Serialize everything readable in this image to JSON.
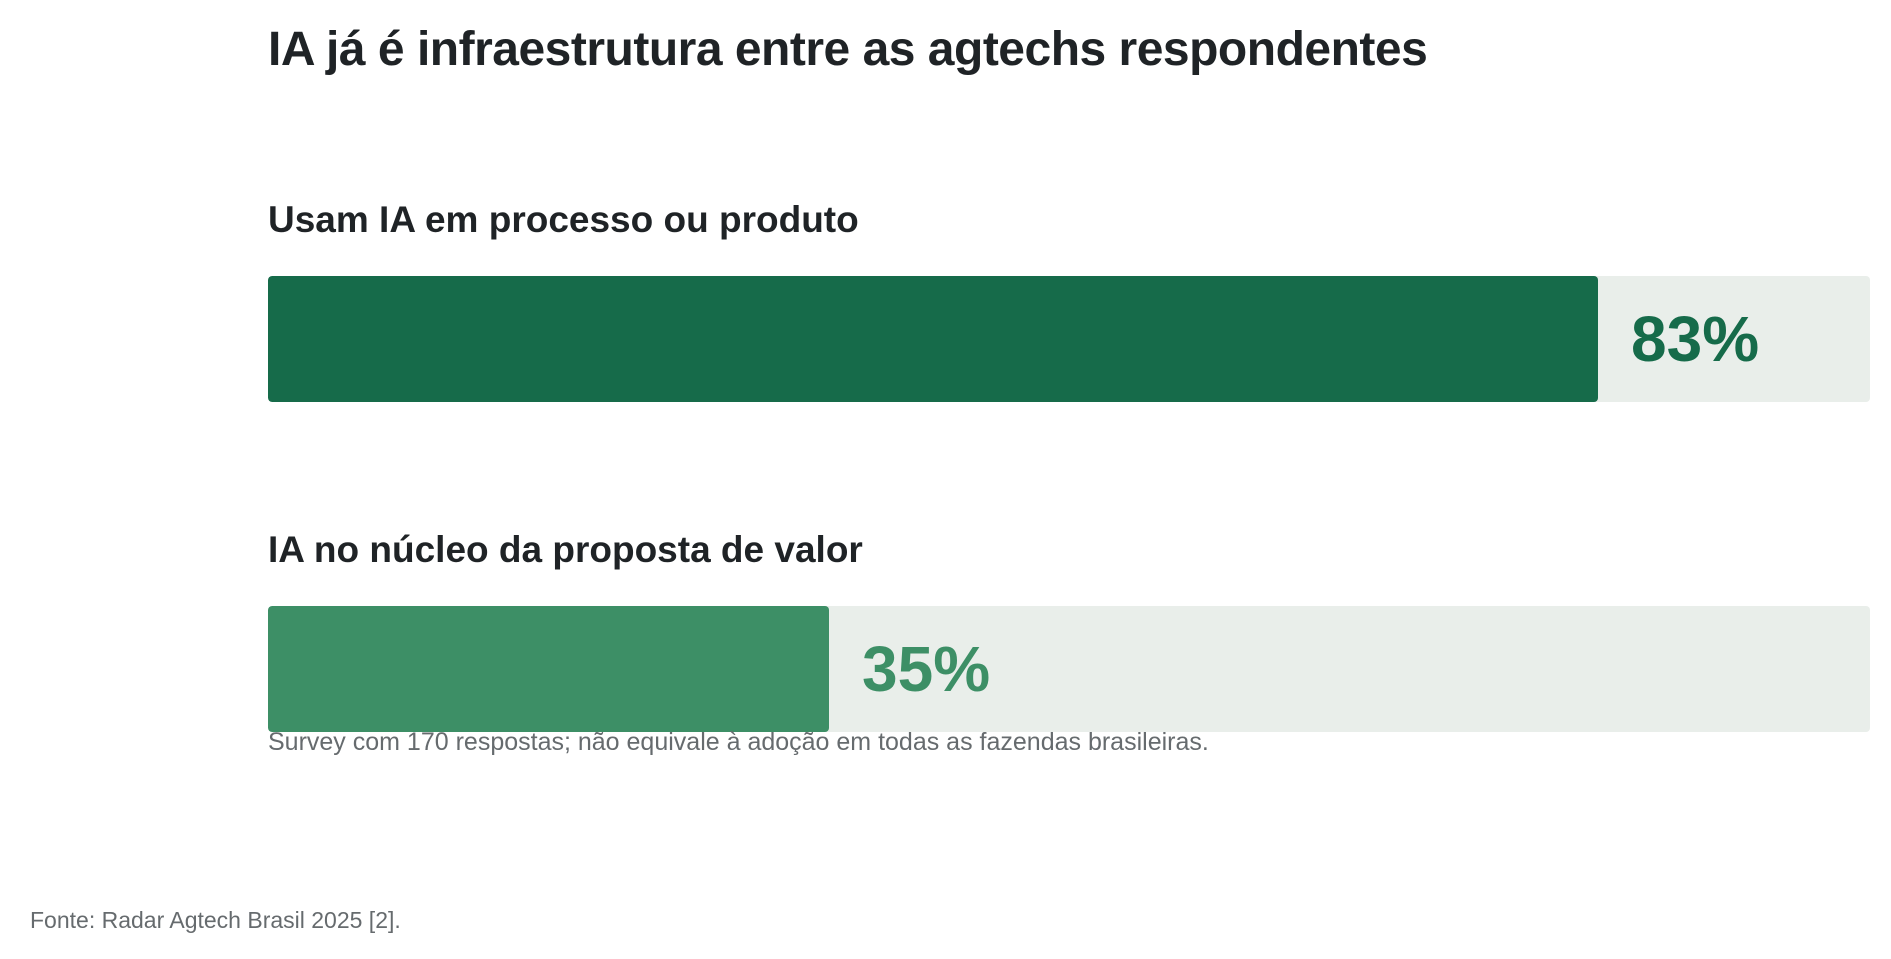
{
  "colors": {
    "primary_bar": "#166b4a",
    "secondary_bar": "#3d8f66",
    "track": "#e9eeea",
    "text": "#1f2326",
    "muted_text": "#666b6e"
  },
  "chart_data": {
    "type": "bar",
    "orientation": "horizontal",
    "title": "IA já é infraestrutura entre as agtechs respondentes",
    "categories": [
      "Usam IA em processo ou produto",
      "IA no núcleo da proposta de valor"
    ],
    "values": [
      83,
      35
    ],
    "value_labels": [
      "83%",
      "35%"
    ],
    "unit": "%",
    "xlim": [
      0,
      100
    ],
    "grid": false,
    "note": "Survey com 170 respostas; não equivale à adoção em todas as fazendas brasileiras.",
    "source": "Fonte: Radar Agtech Brasil 2025 [2]."
  }
}
